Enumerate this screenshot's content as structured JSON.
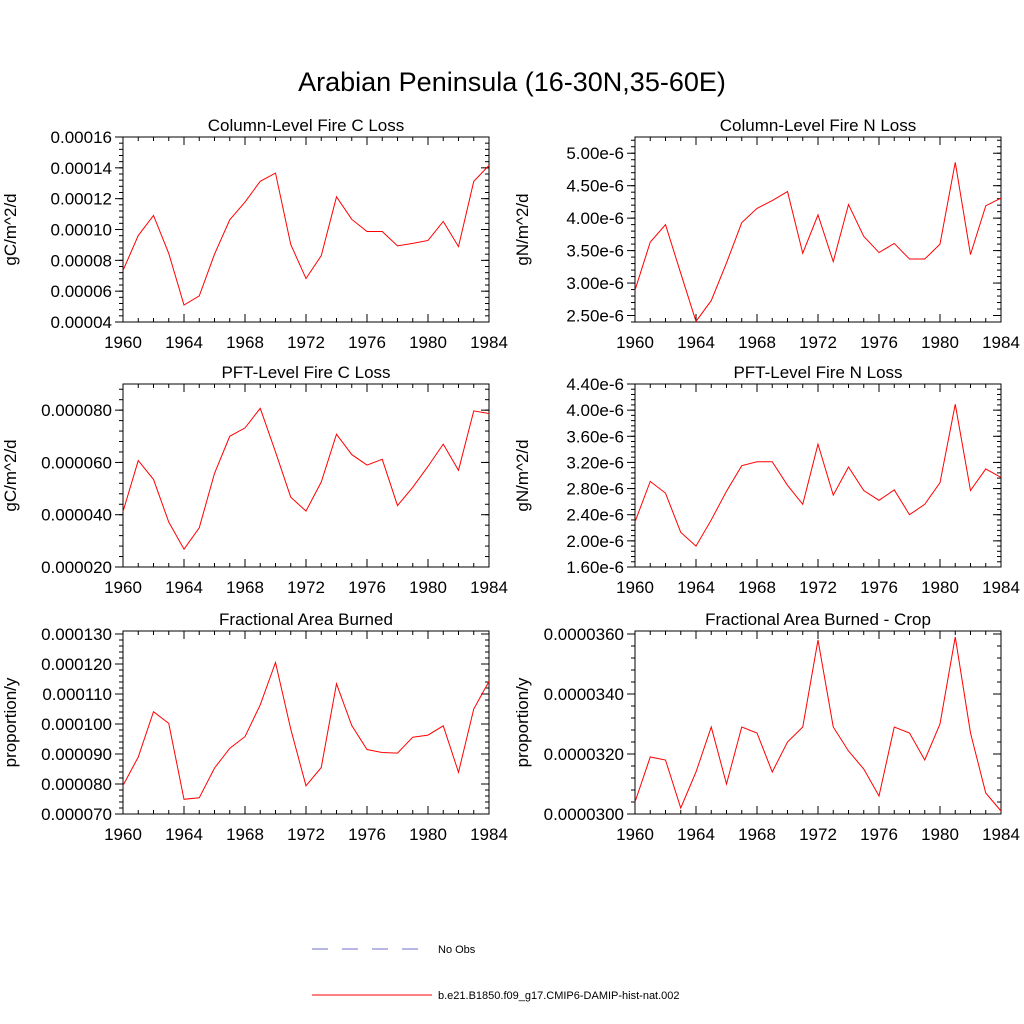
{
  "title": "Arabian Peninsula (16-30N,35-60E)",
  "line_color": "#ff0000",
  "obs_color": "#6e6ecf",
  "legend": {
    "obs_label": "No Obs",
    "model_label": "b.e21.B1850.f09_g17.CMIP6-DAMIP-hist-nat.002"
  },
  "chart_data": [
    {
      "type": "line",
      "title": "Column-Level Fire C Loss",
      "ylabel": "gC/m^2/d",
      "xlim": [
        1960,
        1984
      ],
      "xticks": [
        "1960",
        "1964",
        "1968",
        "1972",
        "1976",
        "1980",
        "1984"
      ],
      "ylim": [
        4e-05,
        0.00016
      ],
      "yticks": [
        "0.00004",
        "0.00006",
        "0.00008",
        "0.00010",
        "0.00012",
        "0.00014",
        "0.00016"
      ],
      "x": [
        1960,
        1961,
        1962,
        1963,
        1964,
        1965,
        1966,
        1967,
        1968,
        1969,
        1970,
        1971,
        1972,
        1973,
        1974,
        1975,
        1976,
        1977,
        1978,
        1979,
        1980,
        1981,
        1982,
        1983,
        1984
      ],
      "series": [
        {
          "name": "b.e21.B1850.f09_g17.CMIP6-DAMIP-hist-nat.002",
          "values": [
            7.34e-05,
            9.61e-05,
            0.0001091,
            8.45e-05,
            5.1e-05,
            5.69e-05,
            8.4e-05,
            0.0001063,
            0.0001178,
            0.0001313,
            0.0001366,
            9.03e-05,
            6.82e-05,
            8.3e-05,
            0.0001212,
            0.0001066,
            9.87e-05,
            9.87e-05,
            8.94e-05,
            9.1e-05,
            9.29e-05,
            0.0001052,
            8.89e-05,
            0.0001312,
            0.0001416
          ]
        }
      ]
    },
    {
      "type": "line",
      "title": "Column-Level Fire N Loss",
      "ylabel": "gN/m^2/d",
      "xlim": [
        1960,
        1984
      ],
      "xticks": [
        "1960",
        "1964",
        "1968",
        "1972",
        "1976",
        "1980",
        "1984"
      ],
      "ylim": [
        2.4e-06,
        5.25e-06
      ],
      "yticks": [
        "2.50e-6",
        "3.00e-6",
        "3.50e-6",
        "4.00e-6",
        "4.50e-6",
        "5.00e-6"
      ],
      "x": [
        1960,
        1961,
        1962,
        1963,
        1964,
        1965,
        1966,
        1967,
        1968,
        1969,
        1970,
        1971,
        1972,
        1973,
        1974,
        1975,
        1976,
        1977,
        1978,
        1979,
        1980,
        1981,
        1982,
        1983,
        1984
      ],
      "series": [
        {
          "name": "b.e21.B1850.f09_g17.CMIP6-DAMIP-hist-nat.002",
          "values": [
            2.89e-06,
            3.63e-06,
            3.9e-06,
            3.15e-06,
            2.41e-06,
            2.73e-06,
            3.31e-06,
            3.93e-06,
            4.15e-06,
            4.27e-06,
            4.41e-06,
            3.46e-06,
            4.05e-06,
            3.33e-06,
            4.21e-06,
            3.72e-06,
            3.47e-06,
            3.61e-06,
            3.37e-06,
            3.37e-06,
            3.6e-06,
            4.86e-06,
            3.44e-06,
            4.19e-06,
            4.31e-06
          ]
        }
      ]
    },
    {
      "type": "line",
      "title": "PFT-Level Fire C Loss",
      "ylabel": "gC/m^2/d",
      "xlim": [
        1960,
        1984
      ],
      "xticks": [
        "1960",
        "1964",
        "1968",
        "1972",
        "1976",
        "1980",
        "1984"
      ],
      "ylim": [
        2e-05,
        9e-05
      ],
      "yticks": [
        "0.000020",
        "0.000040",
        "0.000060",
        "0.000080"
      ],
      "x": [
        1960,
        1961,
        1962,
        1963,
        1964,
        1965,
        1966,
        1967,
        1968,
        1969,
        1970,
        1971,
        1972,
        1973,
        1974,
        1975,
        1976,
        1977,
        1978,
        1979,
        1980,
        1981,
        1982,
        1983,
        1984
      ],
      "series": [
        {
          "name": "b.e21.B1850.f09_g17.CMIP6-DAMIP-hist-nat.002",
          "values": [
            4.12e-05,
            6.07e-05,
            5.35e-05,
            3.72e-05,
            2.68e-05,
            3.5e-05,
            5.58e-05,
            7e-05,
            7.32e-05,
            8.07e-05,
            6.4e-05,
            4.67e-05,
            4.14e-05,
            5.25e-05,
            7.08e-05,
            6.3e-05,
            5.9e-05,
            6.12e-05,
            4.35e-05,
            5.05e-05,
            5.85e-05,
            6.7e-05,
            5.7e-05,
            7.97e-05,
            7.87e-05
          ]
        }
      ]
    },
    {
      "type": "line",
      "title": "PFT-Level Fire N Loss",
      "ylabel": "gN/m^2/d",
      "xlim": [
        1960,
        1984
      ],
      "xticks": [
        "1960",
        "1964",
        "1968",
        "1972",
        "1976",
        "1980",
        "1984"
      ],
      "ylim": [
        1.6e-06,
        4.4e-06
      ],
      "yticks": [
        "1.60e-6",
        "2.00e-6",
        "2.40e-6",
        "2.80e-6",
        "3.20e-6",
        "3.60e-6",
        "4.00e-6",
        "4.40e-6"
      ],
      "x": [
        1960,
        1961,
        1962,
        1963,
        1964,
        1965,
        1966,
        1967,
        1968,
        1969,
        1970,
        1971,
        1972,
        1973,
        1974,
        1975,
        1976,
        1977,
        1978,
        1979,
        1980,
        1981,
        1982,
        1983,
        1984
      ],
      "series": [
        {
          "name": "b.e21.B1850.f09_g17.CMIP6-DAMIP-hist-nat.002",
          "values": [
            2.29e-06,
            2.91e-06,
            2.73e-06,
            2.13e-06,
            1.92e-06,
            2.32e-06,
            2.76e-06,
            3.15e-06,
            3.21e-06,
            3.21e-06,
            2.85e-06,
            2.56e-06,
            3.48e-06,
            2.7e-06,
            3.13e-06,
            2.77e-06,
            2.62e-06,
            2.78e-06,
            2.4e-06,
            2.56e-06,
            2.89e-06,
            4.09e-06,
            2.77e-06,
            3.1e-06,
            2.97e-06
          ]
        }
      ]
    },
    {
      "type": "line",
      "title": "Fractional Area Burned",
      "ylabel": "proportion/y",
      "xlim": [
        1960,
        1984
      ],
      "xticks": [
        "1960",
        "1964",
        "1968",
        "1972",
        "1976",
        "1980",
        "1984"
      ],
      "ylim": [
        7e-05,
        0.000131
      ],
      "yticks": [
        "0.000070",
        "0.000080",
        "0.000090",
        "0.000100",
        "0.000110",
        "0.000120",
        "0.000130"
      ],
      "x": [
        1960,
        1961,
        1962,
        1963,
        1964,
        1965,
        1966,
        1967,
        1968,
        1969,
        1970,
        1971,
        1972,
        1973,
        1974,
        1975,
        1976,
        1977,
        1978,
        1979,
        1980,
        1981,
        1982,
        1983,
        1984
      ],
      "series": [
        {
          "name": "b.e21.B1850.f09_g17.CMIP6-DAMIP-hist-nat.002",
          "values": [
            7.95e-05,
            8.9e-05,
            0.0001041,
            0.0001002,
            7.49e-05,
            7.54e-05,
            8.53e-05,
            9.19e-05,
            9.58e-05,
            0.0001064,
            0.0001205,
            9.83e-05,
            7.94e-05,
            8.55e-05,
            0.0001134,
            9.95e-05,
            9.15e-05,
            9.05e-05,
            9.03e-05,
            9.56e-05,
            9.63e-05,
            9.94e-05,
            8.39e-05,
            0.000105,
            0.0001142
          ]
        }
      ]
    },
    {
      "type": "line",
      "title": "Fractional Area Burned - Crop",
      "ylabel": "proportion/y",
      "xlim": [
        1960,
        1984
      ],
      "xticks": [
        "1960",
        "1964",
        "1968",
        "1972",
        "1976",
        "1980",
        "1984"
      ],
      "ylim": [
        3e-05,
        3.61e-05
      ],
      "yticks": [
        "0.0000300",
        "0.0000320",
        "0.0000340",
        "0.0000360"
      ],
      "x": [
        1960,
        1961,
        1962,
        1963,
        1964,
        1965,
        1966,
        1967,
        1968,
        1969,
        1970,
        1971,
        1972,
        1973,
        1974,
        1975,
        1976,
        1977,
        1978,
        1979,
        1980,
        1981,
        1982,
        1983,
        1984
      ],
      "series": [
        {
          "name": "b.e21.B1850.f09_g17.CMIP6-DAMIP-hist-nat.002",
          "values": [
            3.04e-05,
            3.19e-05,
            3.18e-05,
            3.02e-05,
            3.14e-05,
            3.29e-05,
            3.1e-05,
            3.29e-05,
            3.27e-05,
            3.14e-05,
            3.24e-05,
            3.29e-05,
            3.58e-05,
            3.29e-05,
            3.21e-05,
            3.15e-05,
            3.06e-05,
            3.29e-05,
            3.27e-05,
            3.18e-05,
            3.3e-05,
            3.59e-05,
            3.27e-05,
            3.07e-05,
            3.01e-05
          ]
        }
      ]
    }
  ]
}
